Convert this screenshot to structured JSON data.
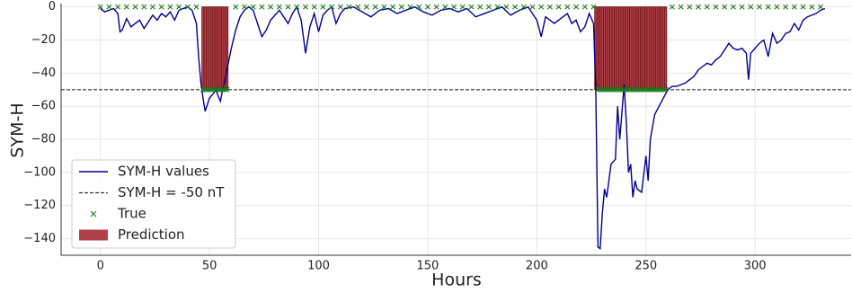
{
  "chart_data": {
    "type": "line",
    "xlabel": "Hours",
    "ylabel": "SYM-H",
    "xlim": [
      -18,
      344
    ],
    "ylim": [
      -150,
      2
    ],
    "xticks": [
      0,
      50,
      100,
      150,
      200,
      250,
      300
    ],
    "yticks": [
      {
        "value": 0,
        "label": "0"
      },
      {
        "value": -20,
        "label": "−20"
      },
      {
        "value": -40,
        "label": "−40"
      },
      {
        "value": -60,
        "label": "−60"
      },
      {
        "value": -80,
        "label": "−80"
      },
      {
        "value": -100,
        "label": "−100"
      },
      {
        "value": -120,
        "label": "−120"
      },
      {
        "value": -140,
        "label": "−140"
      }
    ],
    "grid": true,
    "legend": "lower left",
    "hlines": [
      {
        "name": "SYM-H = -50 nT",
        "value": -50,
        "color": "#333333",
        "style": "dashed"
      }
    ],
    "series": [
      {
        "name": "SYM-H values",
        "type": "line",
        "color": "#00008b",
        "x": [
          0,
          2,
          4,
          6,
          8,
          9,
          10,
          12,
          14,
          16,
          18,
          20,
          22,
          24,
          26,
          28,
          30,
          32,
          34,
          36,
          38,
          40,
          42,
          44,
          45,
          46,
          47,
          48,
          50,
          52,
          53,
          54,
          55,
          56,
          57,
          58,
          60,
          62,
          64,
          66,
          68,
          70,
          72,
          74,
          76,
          78,
          80,
          82,
          84,
          86,
          88,
          90,
          92,
          94,
          96,
          98,
          100,
          102,
          104,
          106,
          108,
          110,
          112,
          116,
          120,
          124,
          128,
          132,
          136,
          140,
          144,
          148,
          152,
          156,
          160,
          164,
          168,
          172,
          176,
          180,
          184,
          188,
          192,
          196,
          200,
          202,
          204,
          208,
          212,
          214,
          216,
          218,
          220,
          222,
          224,
          226,
          227,
          228,
          229,
          230,
          231,
          232,
          234,
          236,
          237,
          238,
          240,
          241,
          242,
          243,
          244,
          245,
          246,
          248,
          250,
          251,
          252,
          254,
          256,
          258,
          260,
          262,
          264,
          266,
          268,
          270,
          272,
          274,
          276,
          278,
          280,
          282,
          284,
          286,
          288,
          290,
          292,
          294,
          296,
          297,
          298,
          300,
          302,
          304,
          306,
          308,
          310,
          312,
          314,
          316,
          318,
          320,
          322,
          324,
          326,
          328,
          330,
          332
        ],
        "values": [
          -1,
          -3,
          -2,
          -1,
          -4,
          -15,
          -14,
          -7,
          -12,
          -10,
          -8,
          -13,
          -9,
          -5,
          -8,
          -4,
          -6,
          -3,
          -8,
          -2,
          -1,
          0,
          -2,
          -10,
          -30,
          -45,
          -55,
          -63,
          -55,
          -52,
          -50,
          -54,
          -57,
          -50,
          -45,
          -38,
          -25,
          -14,
          -6,
          -2,
          0,
          -2,
          -10,
          -18,
          -14,
          -8,
          -5,
          -2,
          -6,
          -10,
          -4,
          0,
          -8,
          -28,
          -12,
          -4,
          -15,
          -5,
          -2,
          0,
          -10,
          -4,
          -1,
          0,
          -3,
          -6,
          -2,
          -1,
          -4,
          -2,
          0,
          -3,
          -5,
          -2,
          -1,
          -3,
          -1,
          -6,
          -4,
          -2,
          0,
          -5,
          -2,
          0,
          -8,
          -18,
          -6,
          -10,
          -6,
          -4,
          -10,
          -8,
          -15,
          -12,
          -4,
          -10,
          -50,
          -145,
          -146,
          -125,
          -110,
          -115,
          -95,
          -92,
          -60,
          -80,
          -47,
          -70,
          -100,
          -95,
          -115,
          -105,
          -110,
          -112,
          -90,
          -105,
          -80,
          -65,
          -60,
          -55,
          -50,
          -48,
          -48,
          -47,
          -46,
          -44,
          -42,
          -38,
          -36,
          -34,
          -35,
          -32,
          -30,
          -26,
          -22,
          -25,
          -26,
          -25,
          -28,
          -44,
          -28,
          -25,
          -22,
          -20,
          -30,
          -16,
          -22,
          -20,
          -16,
          -15,
          -10,
          -14,
          -8,
          -6,
          -5,
          -4,
          -2,
          -1
        ]
      },
      {
        "name": "True",
        "type": "scatter",
        "color": "#1a7a1a",
        "x": [
          0,
          4,
          8,
          12,
          16,
          20,
          24,
          28,
          32,
          36,
          40,
          44,
          47,
          48,
          49,
          50,
          51,
          52,
          53,
          54,
          55,
          56,
          57,
          58,
          62,
          66,
          70,
          74,
          78,
          82,
          86,
          90,
          94,
          98,
          102,
          106,
          110,
          114,
          118,
          122,
          126,
          130,
          134,
          138,
          142,
          146,
          150,
          154,
          158,
          162,
          166,
          170,
          174,
          178,
          182,
          186,
          190,
          194,
          198,
          202,
          206,
          210,
          214,
          218,
          222,
          226,
          228,
          229,
          230,
          231,
          232,
          233,
          234,
          235,
          236,
          237,
          238,
          239,
          240,
          241,
          242,
          243,
          244,
          245,
          246,
          247,
          248,
          249,
          250,
          251,
          252,
          253,
          254,
          255,
          256,
          257,
          258,
          259,
          262,
          266,
          270,
          274,
          278,
          282,
          286,
          290,
          294,
          298,
          302,
          306,
          310,
          314,
          318,
          322,
          326,
          330
        ],
        "values": [
          0,
          0,
          0,
          0,
          0,
          0,
          0,
          0,
          0,
          0,
          0,
          0,
          -50,
          -50,
          -50,
          -50,
          -50,
          -50,
          -50,
          -50,
          -50,
          -50,
          -50,
          -50,
          0,
          0,
          0,
          0,
          0,
          0,
          0,
          0,
          0,
          0,
          0,
          0,
          0,
          0,
          0,
          0,
          0,
          0,
          0,
          0,
          0,
          0,
          0,
          0,
          0,
          0,
          0,
          0,
          0,
          0,
          0,
          0,
          0,
          0,
          0,
          0,
          0,
          0,
          0,
          0,
          0,
          0,
          -50,
          -50,
          -50,
          -50,
          -50,
          -50,
          -50,
          -50,
          -50,
          -50,
          -50,
          -50,
          -50,
          -50,
          -50,
          -50,
          -50,
          -50,
          -50,
          -50,
          -50,
          -50,
          -50,
          -50,
          -50,
          -50,
          -50,
          -50,
          -50,
          -50,
          -50,
          -50,
          0,
          0,
          0,
          0,
          0,
          0,
          0,
          0,
          0,
          0,
          0,
          0,
          0,
          0,
          0,
          0,
          0,
          0
        ]
      },
      {
        "name": "Prediction",
        "type": "bar",
        "color": "#b0404a",
        "x": [
          47,
          48,
          49,
          50,
          51,
          52,
          53,
          54,
          55,
          56,
          57,
          58,
          227,
          228,
          229,
          230,
          231,
          232,
          233,
          234,
          235,
          236,
          237,
          238,
          239,
          240,
          241,
          242,
          243,
          244,
          245,
          246,
          247,
          248,
          249,
          250,
          251,
          252,
          253,
          254,
          255,
          256,
          257,
          258,
          259
        ],
        "values": [
          -50,
          -50,
          -50,
          -50,
          -50,
          -50,
          -50,
          -50,
          -50,
          -50,
          -50,
          -50,
          -50,
          -50,
          -50,
          -50,
          -50,
          -50,
          -50,
          -50,
          -50,
          -50,
          -50,
          -50,
          -50,
          -50,
          -50,
          -50,
          -50,
          -50,
          -50,
          -50,
          -50,
          -50,
          -50,
          -50,
          -50,
          -50,
          -50,
          -50,
          -50,
          -50,
          -50,
          -50,
          -50
        ]
      }
    ]
  }
}
